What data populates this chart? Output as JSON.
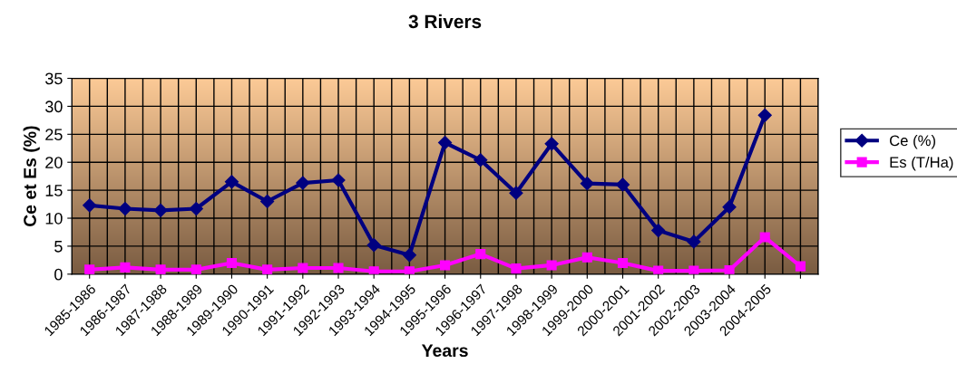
{
  "chart_data": {
    "type": "line",
    "title": "3 Rivers",
    "xlabel": "Years",
    "ylabel": "Ce et Es (%)",
    "categories": [
      "1985-1986",
      "1986-1987",
      "1987-1988",
      "1988-1989",
      "1989-1990",
      "1990-1991",
      "1991-1992",
      "1992-1993",
      "1993-1994",
      "1994-1995",
      "1995-1996",
      "1996-1997",
      "1997-1998",
      "1998-1999",
      "1999-2000",
      "2000-2001",
      "2001-2002",
      "2002-2003",
      "2003-2004",
      "2004-2005",
      null
    ],
    "series": [
      {
        "name": "Ce (%)",
        "color": "#000080",
        "marker": "diamond",
        "values": [
          12.3,
          11.7,
          11.4,
          11.7,
          16.5,
          13.0,
          16.3,
          16.8,
          5.2,
          3.4,
          23.5,
          20.4,
          14.5,
          23.3,
          16.2,
          16.0,
          7.8,
          5.8,
          12.0,
          28.4,
          null
        ]
      },
      {
        "name": "Es (T/Ha)",
        "color": "#ff00ff",
        "marker": "square",
        "values": [
          0.8,
          1.2,
          0.8,
          0.8,
          2.0,
          0.8,
          1.1,
          1.1,
          0.5,
          0.5,
          1.6,
          3.6,
          1.0,
          1.6,
          3.0,
          2.0,
          0.6,
          0.6,
          0.7,
          6.6,
          1.4
        ]
      }
    ],
    "ylim": [
      0,
      35
    ],
    "yticks": [
      0,
      5,
      10,
      15,
      20,
      25,
      30,
      35
    ],
    "grid": true,
    "legend": "right",
    "line_style": "solid"
  }
}
